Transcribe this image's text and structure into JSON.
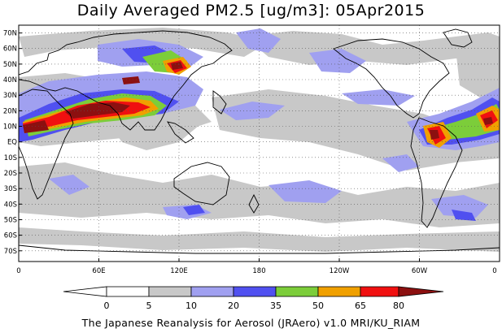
{
  "title": "Daily Averaged PM2.5 [ug/m3]: 05Apr2015",
  "credit": "The Japanese Reanalysis for Aerosol (JRAero) v1.0 MRI/KU_RIAM",
  "lat_labels": [
    "70N",
    "60N",
    "50N",
    "40N",
    "30N",
    "20N",
    "10N",
    "EQ",
    "10S",
    "20S",
    "30S",
    "40S",
    "50S",
    "60S",
    "70S"
  ],
  "lon_labels": [
    "0",
    "60E",
    "120E",
    "180",
    "120W",
    "60W",
    "0"
  ],
  "colorbar": {
    "ticks": [
      "0",
      "5",
      "10",
      "20",
      "35",
      "50",
      "65",
      "80"
    ],
    "colors": [
      "#ffffff",
      "#ffffff",
      "#c8c8c8",
      "#a0a0f0",
      "#5050f0",
      "#7ccd3a",
      "#f0a000",
      "#f01010",
      "#8c1010"
    ]
  }
}
